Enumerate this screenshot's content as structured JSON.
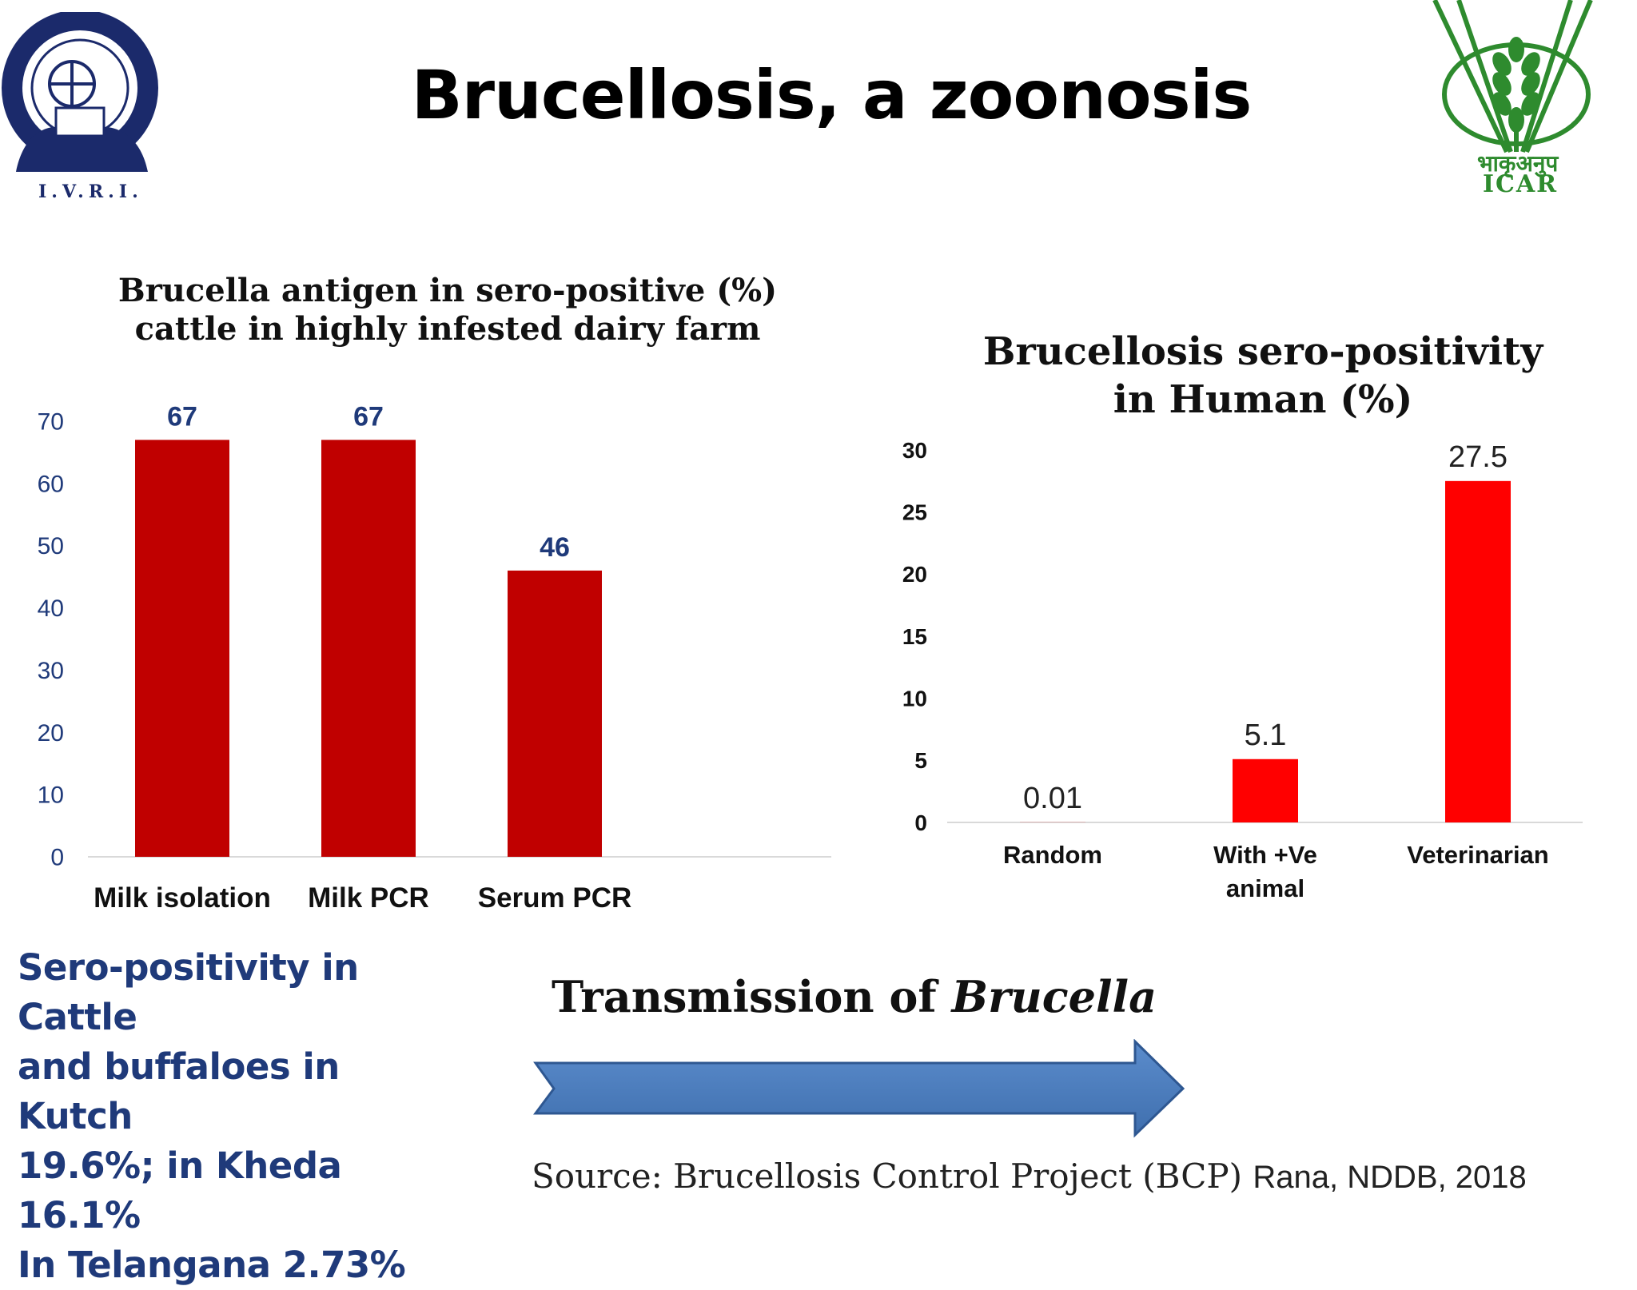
{
  "title": "Brucellosis, a zoonosis",
  "logos": {
    "left": {
      "text": "I.V.R.I.",
      "icon": "ivri-emblem-icon"
    },
    "right": {
      "text_hindi": "भाकृअनुप",
      "text": "ICAR",
      "icon": "icar-wheat-icon",
      "color": "#2e8b2e"
    }
  },
  "chart_data": [
    {
      "type": "bar",
      "title": "Brucella antigen in sero-positive (%) cattle in highly infested dairy farm",
      "title_lines": [
        "Brucella antigen in sero-positive (%)",
        "cattle in highly infested dairy farm"
      ],
      "categories": [
        "Milk isolation",
        "Milk PCR",
        "Serum PCR"
      ],
      "values": [
        67,
        67,
        46
      ],
      "value_labels": [
        "67",
        "67",
        "46"
      ],
      "yticks": [
        "0",
        "10",
        "20",
        "30",
        "40",
        "50",
        "60",
        "70"
      ],
      "ylim": [
        0,
        70
      ],
      "bar_color": "#c00000",
      "label_color": "#1f3a7a",
      "grid": false
    },
    {
      "type": "bar",
      "title": "Brucellosis sero-positivity in Human (%)",
      "title_lines": [
        "Brucellosis sero-positivity",
        "in Human (%)"
      ],
      "categories": [
        "Random",
        "With +Ve animal",
        "Veterinarian"
      ],
      "category_lines": [
        [
          "Random"
        ],
        [
          "With +Ve",
          "animal"
        ],
        [
          "Veterinarian"
        ]
      ],
      "values": [
        0.01,
        5.1,
        27.5
      ],
      "value_labels": [
        "0.01",
        "5.1",
        "27.5"
      ],
      "yticks": [
        "0",
        "5",
        "10",
        "15",
        "20",
        "25",
        "30"
      ],
      "ylim": [
        0,
        30
      ],
      "bar_color": "#ff0000",
      "grid": false
    }
  ],
  "stats_text": [
    "Sero-positivity in Cattle",
    "and buffaloes in Kutch",
    "19.6%; in Kheda 16.1%",
    "In Telangana 2.73%"
  ],
  "transmission": {
    "prefix": "Transmission of ",
    "organism": "Brucella",
    "arrow_color": "#4f7fbf"
  },
  "source": {
    "text": "Source: Brucellosis Control Project (BCP) ",
    "author": "Rana, NDDB, 2018"
  }
}
